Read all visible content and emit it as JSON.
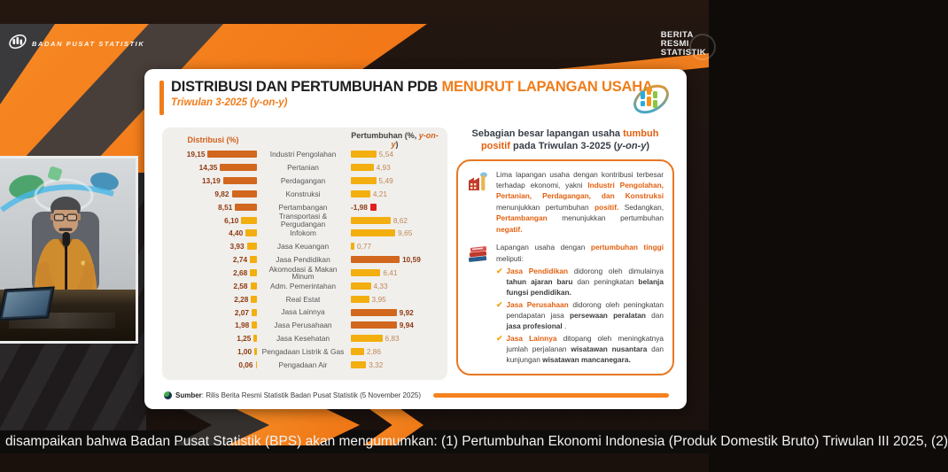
{
  "broadcast": {
    "top_left_brand": "BADAN PUSAT STATISTIK",
    "top_right_brand_lines": {
      "l1": "BERITA",
      "l2": "RESMI",
      "l3": "STATISTIK"
    },
    "ticker_text": "disampaikan bahwa Badan Pusat Statistik (BPS) akan mengumumkan: (1) Pertumbuhan Ekonomi Indonesia (Produk Domestik Bruto) Triwulan III 2025, (2)"
  },
  "slide": {
    "title_black": "DISTRIBUSI DAN PERTUMBUHAN PDB ",
    "title_orange": "MENURUT LAPANGAN USAHA",
    "subtitle": "Triwulan 3-2025 (y-on-y)",
    "source_label": "Sumber",
    "source_rest": ": Rilis Berita Resmi Statistik Badan Pusat Statistik (5 November 2025)"
  },
  "chart_data": {
    "type": "bar",
    "title": "Distribusi dan Pertumbuhan PDB Menurut Lapangan Usaha, Triwulan 3-2025 (y-on-y)",
    "left_header": "Distribusi (%)",
    "right_header_segments": [
      {
        "t": "Pertumbuhan (%, ",
        "s": "n"
      },
      {
        "t": "y-on-y",
        "s": "i"
      },
      {
        "t": ")",
        "s": "n"
      }
    ],
    "legend_notes": "dark orange distribution bars = five largest contributors; dark orange growth bars = high-growth sectors; red = negative growth",
    "rows": [
      {
        "label": "Industri Pengolahan",
        "distribusi": "19,15",
        "d": 19.15,
        "pertumbuhan": "5,54",
        "p": 5.54,
        "top5": true,
        "highlight": false
      },
      {
        "label": "Pertanian",
        "distribusi": "14,35",
        "d": 14.35,
        "pertumbuhan": "4,93",
        "p": 4.93,
        "top5": true,
        "highlight": false
      },
      {
        "label": "Perdagangan",
        "distribusi": "13,19",
        "d": 13.19,
        "pertumbuhan": "5,49",
        "p": 5.49,
        "top5": true,
        "highlight": false
      },
      {
        "label": "Konstruksi",
        "distribusi": "9,82",
        "d": 9.82,
        "pertumbuhan": "4,21",
        "p": 4.21,
        "top5": true,
        "highlight": false
      },
      {
        "label": "Pertambangan",
        "distribusi": "8,51",
        "d": 8.51,
        "pertumbuhan": "-1,98",
        "p": -1.98,
        "top5": true,
        "highlight": false
      },
      {
        "label": "Transportasi & Pergudangan",
        "distribusi": "6,10",
        "d": 6.1,
        "pertumbuhan": "8,62",
        "p": 8.62,
        "top5": false,
        "highlight": false
      },
      {
        "label": "Infokom",
        "distribusi": "4,40",
        "d": 4.4,
        "pertumbuhan": "9,65",
        "p": 9.65,
        "top5": false,
        "highlight": false
      },
      {
        "label": "Jasa Keuangan",
        "distribusi": "3,93",
        "d": 3.93,
        "pertumbuhan": "0,77",
        "p": 0.77,
        "top5": false,
        "highlight": false
      },
      {
        "label": "Jasa Pendidikan",
        "distribusi": "2,74",
        "d": 2.74,
        "pertumbuhan": "10,59",
        "p": 10.59,
        "top5": false,
        "highlight": true
      },
      {
        "label": "Akomodasi & Makan Minum",
        "distribusi": "2,68",
        "d": 2.68,
        "pertumbuhan": "6,41",
        "p": 6.41,
        "top5": false,
        "highlight": false
      },
      {
        "label": "Adm. Pemerintahan",
        "distribusi": "2,58",
        "d": 2.58,
        "pertumbuhan": "4,33",
        "p": 4.33,
        "top5": false,
        "highlight": false
      },
      {
        "label": "Real Estat",
        "distribusi": "2,28",
        "d": 2.28,
        "pertumbuhan": "3,95",
        "p": 3.95,
        "top5": false,
        "highlight": false
      },
      {
        "label": "Jasa Lainnya",
        "distribusi": "2,07",
        "d": 2.07,
        "pertumbuhan": "9,92",
        "p": 9.92,
        "top5": false,
        "highlight": true
      },
      {
        "label": "Jasa Perusahaan",
        "distribusi": "1,98",
        "d": 1.98,
        "pertumbuhan": "9,94",
        "p": 9.94,
        "top5": false,
        "highlight": true
      },
      {
        "label": "Jasa Kesehatan",
        "distribusi": "1,25",
        "d": 1.25,
        "pertumbuhan": "6,83",
        "p": 6.83,
        "top5": false,
        "highlight": false
      },
      {
        "label": "Pengadaan Listrik & Gas",
        "distribusi": "1,00",
        "d": 1.0,
        "pertumbuhan": "2,86",
        "p": 2.86,
        "top5": false,
        "highlight": false
      },
      {
        "label": "Pengadaan Air",
        "distribusi": "0,06",
        "d": 0.06,
        "pertumbuhan": "3,32",
        "p": 3.32,
        "top5": false,
        "highlight": false
      }
    ]
  },
  "panel": {
    "title_segments": [
      {
        "t": "Sebagian besar lapangan usaha ",
        "s": "d"
      },
      {
        "t": "tumbuh positif",
        "s": "o"
      },
      {
        "t": " pada Triwulan 3-2025 (",
        "s": "d"
      },
      {
        "t": "y-on-y",
        "s": "di"
      },
      {
        "t": ")",
        "s": "d"
      }
    ],
    "factory_segments": [
      {
        "t": "Lima lapangan usaha dengan kontribusi terbesar terhadap ekonomi, yakni ",
        "s": "n"
      },
      {
        "t": "Industri Pengolahan, Pertanian, Perdagangan, dan Konstruksi",
        "s": "o"
      },
      {
        "t": " menunjukkan pertumbuhan ",
        "s": "n"
      },
      {
        "t": "positif.",
        "s": "o"
      },
      {
        "t": " Sedangkan, ",
        "s": "n"
      },
      {
        "t": "Pertambangan",
        "s": "o"
      },
      {
        "t": " menunjukkan pertumbuhan ",
        "s": "n"
      },
      {
        "t": "negatif.",
        "s": "o"
      }
    ],
    "growth_intro_segments": [
      {
        "t": "Lapangan usaha dengan ",
        "s": "n"
      },
      {
        "t": "pertumbuhan tinggi",
        "s": "o"
      },
      {
        "t": " meliputi:",
        "s": "n"
      }
    ],
    "check_glyph": "✔",
    "checklist": [
      [
        {
          "t": "Jasa Pendidikan",
          "s": "o"
        },
        {
          "t": " didorong oleh dimulainya ",
          "s": "n"
        },
        {
          "t": "tahun ajaran baru",
          "s": "b"
        },
        {
          "t": " dan peningkatan ",
          "s": "n"
        },
        {
          "t": "belanja fungsi pendidikan.",
          "s": "b"
        }
      ],
      [
        {
          "t": "Jasa Perusahaan",
          "s": "o"
        },
        {
          "t": " didorong oleh peningkatan pendapatan jasa ",
          "s": "n"
        },
        {
          "t": "persewaan peralatan",
          "s": "b"
        },
        {
          "t": " dan ",
          "s": "n"
        },
        {
          "t": "jasa profesional",
          "s": "b"
        },
        {
          "t": " .",
          "s": "n"
        }
      ],
      [
        {
          "t": "Jasa Lainnya",
          "s": "o"
        },
        {
          "t": " ditopang oleh meningkatnya jumlah perjalanan ",
          "s": "n"
        },
        {
          "t": "wisatawan nusantara",
          "s": "b"
        },
        {
          "t": " dan kunjungan ",
          "s": "n"
        },
        {
          "t": "wisatawan mancanegara.",
          "s": "b"
        }
      ]
    ]
  },
  "colors": {
    "accent_orange": "#f07d1a",
    "gold_bar": "#f3ae0f",
    "dark_orange_bar": "#d2671e",
    "negative_red": "#e01f1f",
    "value_maroon": "#8e3a12",
    "panel_border": "#e87722"
  }
}
